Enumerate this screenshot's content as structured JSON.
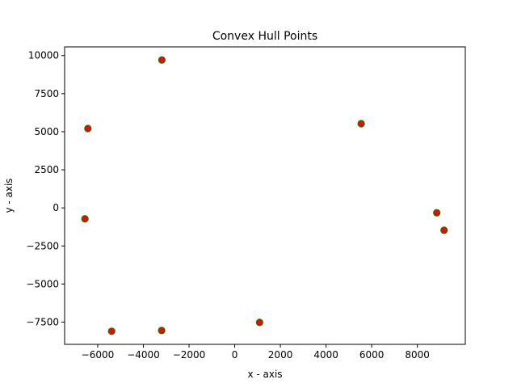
{
  "chart_data": {
    "type": "scatter",
    "title": "Convex Hull Points",
    "xlabel": "x - axis",
    "ylabel": "y - axis",
    "xlim": [
      -7450,
      10100
    ],
    "ylim": [
      -8960,
      10570
    ],
    "xticks": [
      -6000,
      -4000,
      -2000,
      0,
      2000,
      4000,
      6000,
      8000
    ],
    "xtick_labels": [
      "−6000",
      "−4000",
      "−2000",
      "0",
      "2000",
      "4000",
      "6000",
      "8000"
    ],
    "yticks": [
      -7500,
      -5000,
      -2500,
      0,
      2500,
      5000,
      7500,
      10000
    ],
    "ytick_labels": [
      "−7500",
      "−5000",
      "−2500",
      "0",
      "2500",
      "5000",
      "7500",
      "10000"
    ],
    "grid": false,
    "legend": "none",
    "marker_face_color": "#ff0000",
    "marker_edge_color": "#008000",
    "series": [
      {
        "x": [
          -3190,
          -6430,
          -6560,
          -5390,
          -3200,
          1090,
          5540,
          8850,
          9170
        ],
        "y": [
          9710,
          5210,
          -720,
          -8100,
          -8050,
          -7520,
          5530,
          -320,
          -1470
        ]
      }
    ]
  }
}
